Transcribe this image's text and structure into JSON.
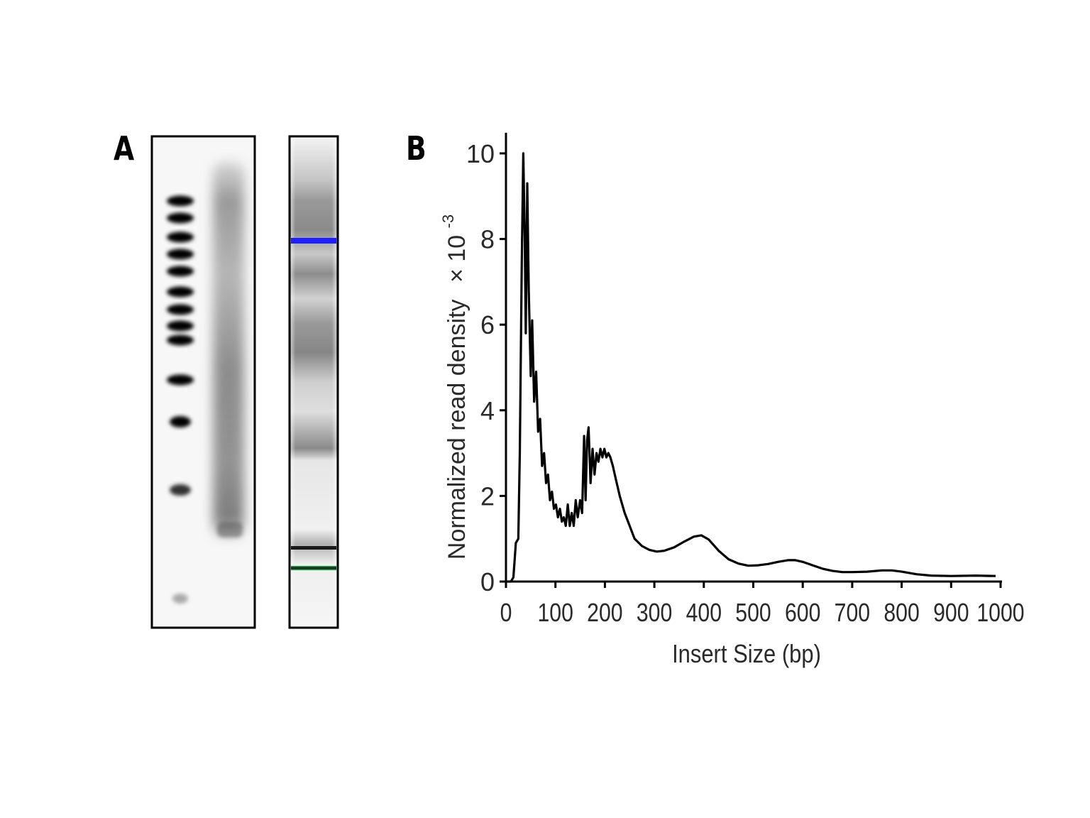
{
  "panels": {
    "a_label": "A",
    "b_label": "B"
  },
  "gel": {
    "ladder_bands": 12,
    "marker_colors": {
      "upper": "#1f1fff",
      "lower": "#0a8a3a"
    }
  },
  "chart_data": {
    "type": "line",
    "title": "",
    "xlabel": "Insert Size (bp)",
    "ylabel": "Normalized read density",
    "ylabel_multiplier": "× 10",
    "ylabel_exponent": "-3",
    "xlim": [
      0,
      1000
    ],
    "ylim": [
      0,
      10.5
    ],
    "x_ticks": [
      0,
      100,
      200,
      300,
      400,
      500,
      600,
      700,
      800,
      900,
      1000
    ],
    "y_ticks": [
      0,
      2,
      4,
      6,
      8,
      10
    ],
    "grid": false,
    "series": [
      {
        "color": "#000000",
        "points": [
          [
            0,
            0
          ],
          [
            10,
            0
          ],
          [
            15,
            0.1
          ],
          [
            20,
            0.9
          ],
          [
            25,
            1.0
          ],
          [
            28,
            3.0
          ],
          [
            32,
            7.5
          ],
          [
            35,
            10.0
          ],
          [
            38,
            8.0
          ],
          [
            40,
            5.8
          ],
          [
            43,
            9.3
          ],
          [
            46,
            6.8
          ],
          [
            50,
            4.8
          ],
          [
            53,
            6.1
          ],
          [
            57,
            4.2
          ],
          [
            61,
            4.9
          ],
          [
            65,
            3.5
          ],
          [
            69,
            3.8
          ],
          [
            73,
            2.7
          ],
          [
            77,
            3.0
          ],
          [
            81,
            2.3
          ],
          [
            85,
            2.5
          ],
          [
            89,
            1.9
          ],
          [
            93,
            2.1
          ],
          [
            97,
            1.7
          ],
          [
            101,
            1.8
          ],
          [
            105,
            1.5
          ],
          [
            109,
            1.7
          ],
          [
            113,
            1.4
          ],
          [
            117,
            1.5
          ],
          [
            121,
            1.3
          ],
          [
            125,
            1.8
          ],
          [
            129,
            1.3
          ],
          [
            133,
            1.6
          ],
          [
            137,
            1.3
          ],
          [
            141,
            1.9
          ],
          [
            145,
            1.5
          ],
          [
            150,
            1.9
          ],
          [
            154,
            1.6
          ],
          [
            158,
            3.4
          ],
          [
            161,
            1.9
          ],
          [
            164,
            3.3
          ],
          [
            167,
            3.6
          ],
          [
            171,
            2.3
          ],
          [
            175,
            3.1
          ],
          [
            179,
            2.5
          ],
          [
            183,
            3.0
          ],
          [
            187,
            2.8
          ],
          [
            191,
            3.1
          ],
          [
            195,
            2.9
          ],
          [
            199,
            3.1
          ],
          [
            203,
            2.9
          ],
          [
            207,
            3.0
          ],
          [
            211,
            2.9
          ],
          [
            216,
            2.7
          ],
          [
            222,
            2.4
          ],
          [
            230,
            2.0
          ],
          [
            240,
            1.6
          ],
          [
            250,
            1.3
          ],
          [
            260,
            1.0
          ],
          [
            275,
            0.83
          ],
          [
            290,
            0.74
          ],
          [
            305,
            0.7
          ],
          [
            320,
            0.72
          ],
          [
            340,
            0.8
          ],
          [
            360,
            0.93
          ],
          [
            380,
            1.05
          ],
          [
            395,
            1.08
          ],
          [
            410,
            0.98
          ],
          [
            430,
            0.72
          ],
          [
            450,
            0.52
          ],
          [
            470,
            0.42
          ],
          [
            490,
            0.37
          ],
          [
            510,
            0.38
          ],
          [
            530,
            0.41
          ],
          [
            550,
            0.46
          ],
          [
            570,
            0.5
          ],
          [
            585,
            0.5
          ],
          [
            600,
            0.46
          ],
          [
            620,
            0.38
          ],
          [
            640,
            0.3
          ],
          [
            660,
            0.25
          ],
          [
            680,
            0.22
          ],
          [
            700,
            0.22
          ],
          [
            730,
            0.23
          ],
          [
            760,
            0.26
          ],
          [
            780,
            0.26
          ],
          [
            800,
            0.23
          ],
          [
            830,
            0.17
          ],
          [
            860,
            0.14
          ],
          [
            900,
            0.13
          ],
          [
            950,
            0.14
          ],
          [
            990,
            0.13
          ]
        ]
      }
    ]
  }
}
